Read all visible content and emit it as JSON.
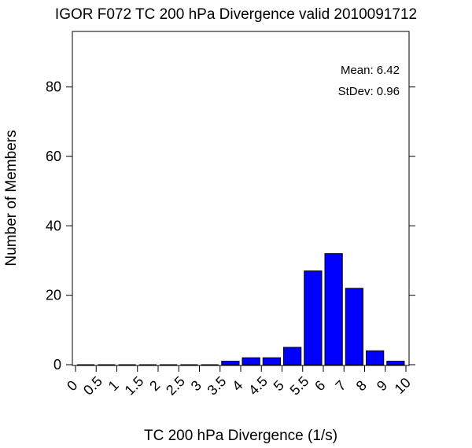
{
  "chart_data": {
    "type": "bar",
    "title": "IGOR F072 TC 200 hPa Divergence valid 2010091712",
    "xlabel": "TC 200 hPa Divergence (1/s)",
    "ylabel": "Number of Members",
    "x_tick_labels": [
      "0",
      "0.5",
      "1",
      "1.5",
      "2",
      "2.5",
      "3",
      "3.5",
      "4",
      "4.5",
      "5",
      "5.5",
      "6",
      "7",
      "8",
      "9",
      "10"
    ],
    "bin_edges": [
      "0",
      "0.5",
      "1",
      "1.5",
      "2",
      "2.5",
      "3",
      "3.5",
      "4",
      "4.5",
      "5",
      "5.5",
      "6",
      "7",
      "8",
      "9",
      "10"
    ],
    "values": [
      0,
      0,
      0,
      0,
      0,
      0,
      0,
      1,
      2,
      2,
      5,
      27,
      32,
      22,
      4,
      1
    ],
    "y_ticks": [
      0,
      20,
      40,
      60,
      80
    ],
    "ylim": [
      0,
      96
    ],
    "bar_color": "#0000ff",
    "grid": false,
    "annotations": {
      "mean": "Mean: 6.42",
      "stdev": "StDev: 0.96"
    }
  }
}
